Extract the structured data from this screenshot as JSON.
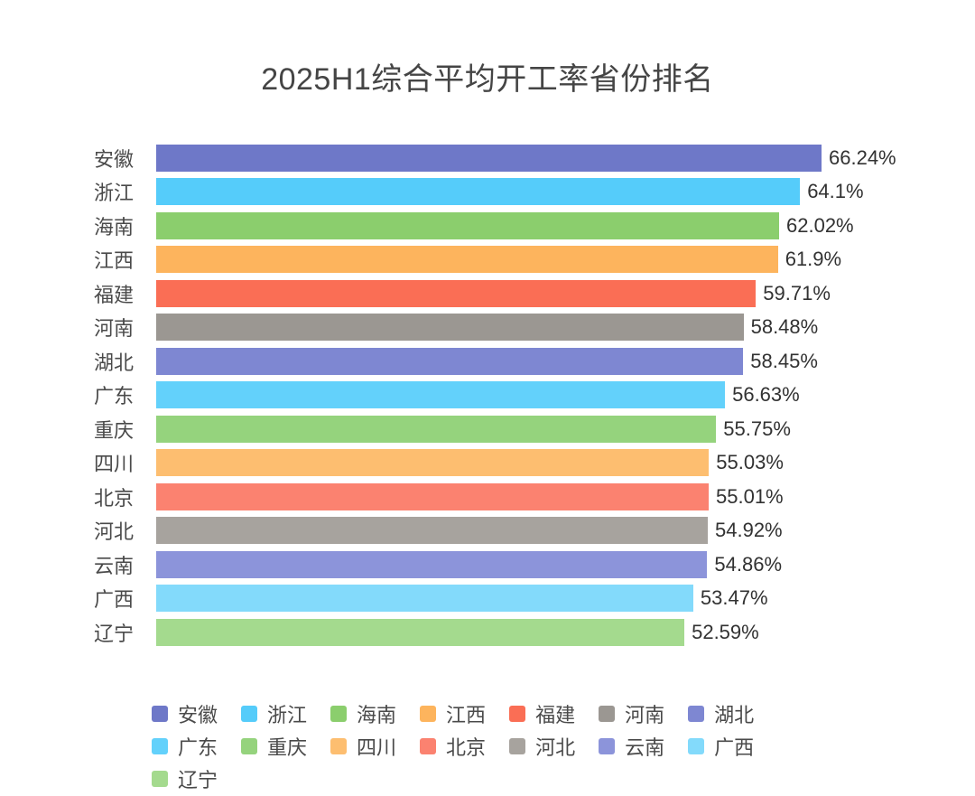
{
  "chart_data": {
    "type": "bar",
    "orientation": "horizontal",
    "title": "2025H1综合平均开工率省份排名",
    "categories": [
      "安徽",
      "浙江",
      "海南",
      "江西",
      "福建",
      "河南",
      "湖北",
      "广东",
      "重庆",
      "四川",
      "北京",
      "河北",
      "云南",
      "广西",
      "辽宁"
    ],
    "values": [
      66.24,
      64.1,
      62.02,
      61.9,
      59.71,
      58.48,
      58.45,
      56.63,
      55.75,
      55.03,
      55.01,
      54.92,
      54.86,
      53.47,
      52.59
    ],
    "value_labels": [
      "66.24%",
      "64.1%",
      "62.02%",
      "61.9%",
      "59.71%",
      "58.48%",
      "58.45%",
      "56.63%",
      "55.75%",
      "55.03%",
      "55.01%",
      "54.92%",
      "54.86%",
      "53.47%",
      "52.59%"
    ],
    "colors": [
      "#6E78C8",
      "#55CCFA",
      "#8BCE6D",
      "#FDB45D",
      "#FA6E55",
      "#9B9792",
      "#7E87D2",
      "#63D1FB",
      "#95D37D",
      "#FDBE70",
      "#FB8270",
      "#A7A39E",
      "#8C94DA",
      "#83DAFB",
      "#A4DA8E"
    ],
    "xlim": [
      0,
      78
    ],
    "xlabel": "",
    "ylabel": "",
    "grid": false,
    "legend_position": "bottom",
    "legend_rows": [
      [
        "安徽",
        "浙江",
        "海南",
        "江西",
        "福建",
        "河南",
        "湖北",
        "广东"
      ],
      [
        "重庆",
        "四川",
        "北京",
        "河北",
        "云南",
        "广西",
        "辽宁"
      ]
    ]
  }
}
